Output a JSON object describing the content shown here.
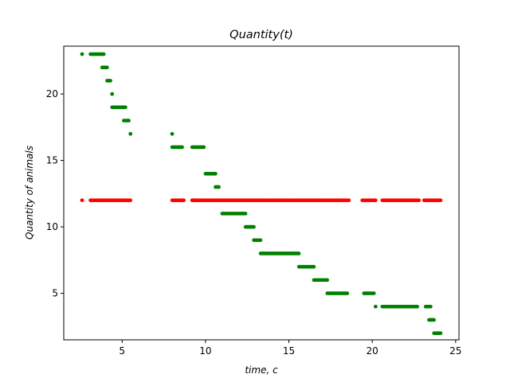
{
  "chart_data": {
    "type": "scatter",
    "title": "Quantity(t)",
    "xlabel": "time,  c",
    "ylabel": "Quantity of animals",
    "xlim": [
      1.5,
      25.2
    ],
    "ylim": [
      1.5,
      23.6
    ],
    "xticks": [
      5,
      10,
      15,
      20,
      25
    ],
    "yticks": [
      5,
      10,
      15,
      20
    ],
    "grid": false,
    "series": [
      {
        "color": "#008000",
        "segments": [
          {
            "x": [
              2.6,
              2.6
            ],
            "y": 23
          },
          {
            "x": [
              3.1,
              3.9
            ],
            "y": 23
          },
          {
            "x": [
              3.8,
              4.1
            ],
            "y": 22
          },
          {
            "x": [
              4.1,
              4.3
            ],
            "y": 21
          },
          {
            "x": [
              4.4,
              4.4
            ],
            "y": 20
          },
          {
            "x": [
              4.4,
              5.2
            ],
            "y": 19
          },
          {
            "x": [
              5.1,
              5.4
            ],
            "y": 18
          },
          {
            "x": [
              5.5,
              5.5
            ],
            "y": 17
          },
          {
            "x": [
              8.0,
              8.0
            ],
            "y": 17
          },
          {
            "x": [
              8.0,
              8.6
            ],
            "y": 16
          },
          {
            "x": [
              9.2,
              9.9
            ],
            "y": 16
          },
          {
            "x": [
              10.0,
              10.6
            ],
            "y": 14
          },
          {
            "x": [
              10.6,
              10.8
            ],
            "y": 13
          },
          {
            "x": [
              9.2,
              9.3
            ],
            "y": 12
          },
          {
            "x": [
              11.0,
              12.4
            ],
            "y": 11
          },
          {
            "x": [
              12.4,
              12.9
            ],
            "y": 10
          },
          {
            "x": [
              12.9,
              13.3
            ],
            "y": 9
          },
          {
            "x": [
              13.3,
              15.6
            ],
            "y": 8
          },
          {
            "x": [
              15.6,
              16.5
            ],
            "y": 7
          },
          {
            "x": [
              16.5,
              17.3
            ],
            "y": 6
          },
          {
            "x": [
              17.3,
              18.5
            ],
            "y": 5
          },
          {
            "x": [
              19.5,
              20.1
            ],
            "y": 5
          },
          {
            "x": [
              20.2,
              20.2
            ],
            "y": 4
          },
          {
            "x": [
              20.6,
              22.7
            ],
            "y": 4
          },
          {
            "x": [
              23.2,
              23.5
            ],
            "y": 4
          },
          {
            "x": [
              23.4,
              23.7
            ],
            "y": 3
          },
          {
            "x": [
              23.7,
              24.1
            ],
            "y": 2
          }
        ]
      },
      {
        "color": "#ff0000",
        "segments": [
          {
            "x": [
              2.6,
              2.6
            ],
            "y": 12
          },
          {
            "x": [
              3.1,
              5.5
            ],
            "y": 12
          },
          {
            "x": [
              8.0,
              8.7
            ],
            "y": 12
          },
          {
            "x": [
              9.2,
              18.6
            ],
            "y": 12
          },
          {
            "x": [
              19.4,
              20.2
            ],
            "y": 12
          },
          {
            "x": [
              20.6,
              22.8
            ],
            "y": 12
          },
          {
            "x": [
              23.1,
              24.1
            ],
            "y": 12
          }
        ]
      }
    ]
  }
}
